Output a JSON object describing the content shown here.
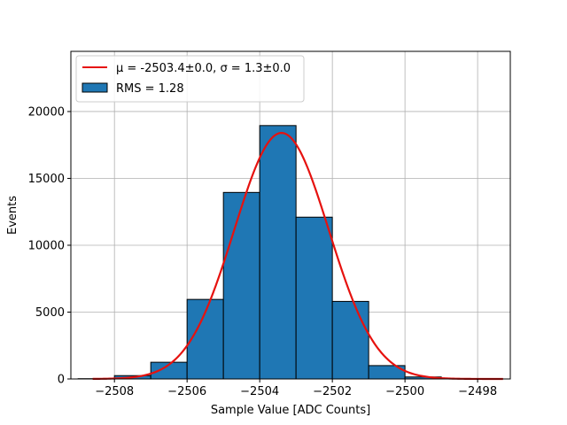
{
  "chart_data": {
    "type": "bar",
    "title": "",
    "xlabel": "Sample Value [ADC Counts]",
    "ylabel": "Events",
    "xlim": [
      -2509.2,
      -2497.1
    ],
    "ylim": [
      0,
      24500
    ],
    "xticks": [
      -2508,
      -2506,
      -2504,
      -2502,
      -2500,
      -2498
    ],
    "xtick_labels": [
      "−2508",
      "−2506",
      "−2504",
      "−2502",
      "−2500",
      "−2498"
    ],
    "yticks": [
      0,
      5000,
      10000,
      15000,
      20000
    ],
    "ytick_labels": [
      "0",
      "5000",
      "10000",
      "15000",
      "20000"
    ],
    "grid": true,
    "legend_position": "top-left",
    "bar_color": "#1f77b4",
    "fit_color": "#e6120f",
    "bins": [
      {
        "x0": -2510.0,
        "x1": -2509.0,
        "value": 0
      },
      {
        "x0": -2509.0,
        "x1": -2508.0,
        "value": 20
      },
      {
        "x0": -2508.0,
        "x1": -2507.0,
        "value": 250
      },
      {
        "x0": -2507.0,
        "x1": -2506.0,
        "value": 1250
      },
      {
        "x0": -2506.0,
        "x1": -2505.0,
        "value": 5950
      },
      {
        "x0": -2505.0,
        "x1": -2504.0,
        "value": 13950
      },
      {
        "x0": -2504.0,
        "x1": -2503.0,
        "value": 18950
      },
      {
        "x0": -2503.0,
        "x1": -2502.0,
        "value": 12100
      },
      {
        "x0": -2502.0,
        "x1": -2501.0,
        "value": 5800
      },
      {
        "x0": -2501.0,
        "x1": -2500.0,
        "value": 1000
      },
      {
        "x0": -2500.0,
        "x1": -2499.0,
        "value": 150
      },
      {
        "x0": -2499.0,
        "x1": -2498.0,
        "value": 10
      }
    ],
    "fit": {
      "mu": -2503.4,
      "sigma": 1.3,
      "amplitude": 18400,
      "x_range": [
        -2508.6,
        -2497.3
      ]
    },
    "legend": [
      {
        "type": "line",
        "label": "μ = -2503.4±0.0, σ = 1.3±0.0"
      },
      {
        "type": "patch",
        "label": "RMS = 1.28"
      }
    ]
  }
}
